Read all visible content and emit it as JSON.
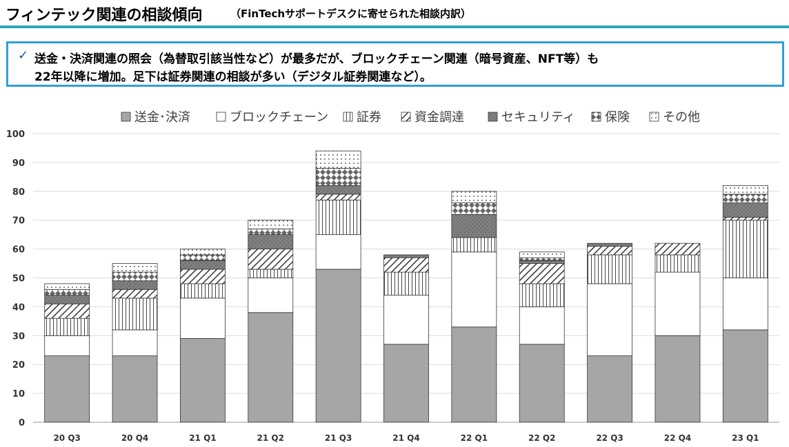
{
  "header": {
    "title": "フィンテック関連の相談傾向",
    "subtitle": "（FinTechサポートデスクに寄せられた相談内訳）"
  },
  "note": {
    "check": "✓",
    "line1": "送金・決済関連の照会（為替取引該当性など）が最多だが、ブロックチェーン関連（暗号資産、NFT等）も",
    "line2": "22年以降に増加。足下は証券関連の相談が多い（デジタル証券関連など）。"
  },
  "colors": {
    "accent_line": "#2aa7b8",
    "note_border": "#2d9fd8",
    "remittance": "#a6a6a6",
    "security": "#7f7f7f"
  },
  "chart_data": {
    "type": "bar",
    "stacked": true,
    "categories": [
      "20 Q3",
      "20 Q4",
      "21 Q1",
      "21 Q2",
      "21 Q3",
      "21 Q4",
      "22 Q1",
      "22 Q2",
      "22 Q3",
      "22 Q4",
      "23 Q1"
    ],
    "ylim": [
      0,
      100
    ],
    "yticks": [
      0,
      10,
      20,
      30,
      40,
      50,
      60,
      70,
      80,
      90,
      100
    ],
    "grid": true,
    "legend_position": "top",
    "series": [
      {
        "name": "送金･決済",
        "pattern": "solid-gray",
        "values": [
          23,
          23,
          29,
          38,
          53,
          27,
          33,
          27,
          23,
          30,
          32
        ]
      },
      {
        "name": "ブロックチェーン",
        "pattern": "white",
        "values": [
          7,
          9,
          14,
          12,
          12,
          17,
          26,
          13,
          25,
          22,
          18
        ]
      },
      {
        "name": "証券",
        "pattern": "vertical-lines",
        "values": [
          6,
          11,
          5,
          3,
          12,
          8,
          5,
          8,
          10,
          6,
          20
        ]
      },
      {
        "name": "資金調達",
        "pattern": "diagonal",
        "values": [
          5,
          3,
          5,
          7,
          2,
          5,
          0,
          7,
          3,
          4,
          1
        ]
      },
      {
        "name": "セキュリティ",
        "pattern": "dark-gray",
        "values": [
          3,
          3,
          3,
          5,
          3,
          1,
          8,
          1,
          1,
          0,
          5
        ]
      },
      {
        "name": "保険",
        "pattern": "diamonds",
        "values": [
          2,
          3,
          2,
          2,
          6,
          0,
          4,
          1,
          0,
          0,
          3
        ]
      },
      {
        "name": "その他",
        "pattern": "dots",
        "values": [
          2,
          3,
          2,
          3,
          6,
          0,
          4,
          2,
          0,
          0,
          3
        ]
      }
    ]
  }
}
